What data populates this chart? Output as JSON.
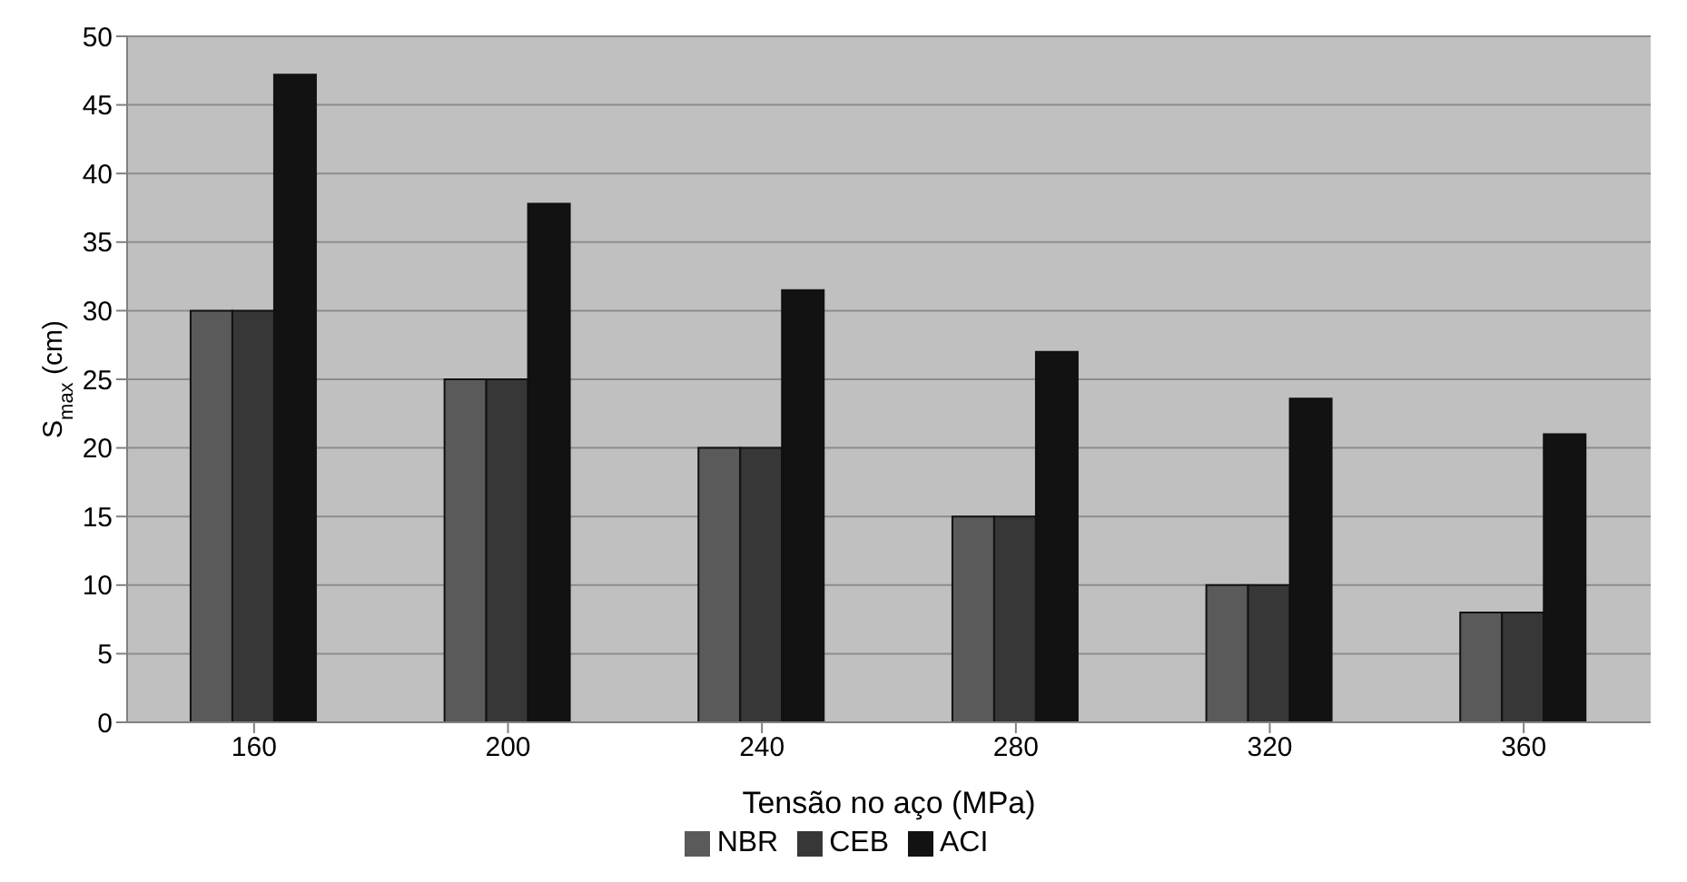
{
  "chart_data": {
    "type": "bar",
    "xlabel": "Tensão no aço (MPa)",
    "ylabel": "S$_{max}$ (cm)",
    "categories": [
      "160",
      "200",
      "240",
      "280",
      "320",
      "360"
    ],
    "series": [
      {
        "name": "NBR",
        "color": "#5a5a5a",
        "values": [
          30,
          25,
          20,
          15,
          10,
          8
        ]
      },
      {
        "name": "CEB",
        "color": "#373737",
        "values": [
          30,
          25,
          20,
          15,
          10,
          8
        ]
      },
      {
        "name": "ACI",
        "color": "#121212",
        "values": [
          47.2,
          37.8,
          31.5,
          27.0,
          23.6,
          21.0
        ]
      }
    ],
    "ylim": [
      0,
      50
    ],
    "yticks": [
      0,
      5,
      10,
      15,
      20,
      25,
      30,
      35,
      40,
      45,
      50
    ],
    "grid": "y",
    "legend": "bottom"
  }
}
